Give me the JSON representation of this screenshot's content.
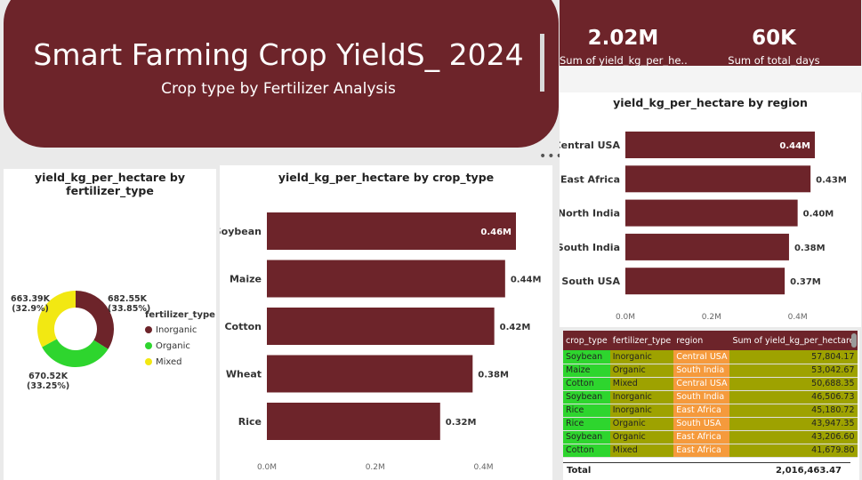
{
  "header": {
    "title": "Smart Farming Crop YieldS_ 2024",
    "subtitle": "Crop type by Fertilizer Analysis"
  },
  "kpis": [
    {
      "value": "2.02M",
      "label": "Sum of yield_kg_per_he..."
    },
    {
      "value": "60K",
      "label": "Sum of total_days"
    }
  ],
  "more_options": "•••",
  "colors": {
    "brand": "#6d242a",
    "inorganic": "#6d242a",
    "organic": "#2ed52e",
    "mixed": "#f2e812"
  },
  "donut": {
    "title_line1": "yield_kg_per_hectare by",
    "title_line2": "fertilizer_type",
    "legend_title": "fertilizer_type",
    "segments": [
      {
        "name": "Inorganic",
        "value": 682.55,
        "value_label": "682.55K",
        "pct_label": "(33.85%)"
      },
      {
        "name": "Organic",
        "value": 670.52,
        "value_label": "670.52K",
        "pct_label": "(33.25%)"
      },
      {
        "name": "Mixed",
        "value": 663.39,
        "value_label": "663.39K",
        "pct_label": "(32.9%)"
      }
    ]
  },
  "chart_data": [
    {
      "type": "bar",
      "title": "yield_kg_per_hectare by crop_type",
      "categories": [
        "Soybean",
        "Maize",
        "Cotton",
        "Wheat",
        "Rice"
      ],
      "values": [
        0.46,
        0.44,
        0.42,
        0.38,
        0.32
      ],
      "value_labels": [
        "0.46M",
        "0.44M",
        "0.42M",
        "0.38M",
        "0.32M"
      ],
      "xlim": [
        0,
        0.46
      ],
      "ticks": [
        "0.0M",
        "0.2M",
        "0.4M"
      ],
      "tick_values": [
        0,
        0.2,
        0.4
      ]
    },
    {
      "type": "bar",
      "title": "yield_kg_per_hectare by region",
      "categories": [
        "Central USA",
        "East Africa",
        "North India",
        "South India",
        "South USA"
      ],
      "values": [
        0.44,
        0.43,
        0.4,
        0.38,
        0.37
      ],
      "value_labels": [
        "0.44M",
        "0.43M",
        "0.40M",
        "0.38M",
        "0.37M"
      ],
      "xlim": [
        0,
        0.44
      ],
      "ticks": [
        "0.0M",
        "0.2M",
        "0.4M"
      ],
      "tick_values": [
        0,
        0.2,
        0.4
      ]
    }
  ],
  "table": {
    "columns": [
      "crop_type",
      "fertilizer_type",
      "region",
      "Sum of yield_kg_per_hectare"
    ],
    "rows": [
      [
        "Soybean",
        "Inorganic",
        "Central USA",
        "57,804.17"
      ],
      [
        "Maize",
        "Organic",
        "South India",
        "53,042.67"
      ],
      [
        "Cotton",
        "Mixed",
        "Central USA",
        "50,688.35"
      ],
      [
        "Soybean",
        "Inorganic",
        "South India",
        "46,506.73"
      ],
      [
        "Rice",
        "Inorganic",
        "East Africa",
        "45,180.72"
      ],
      [
        "Rice",
        "Organic",
        "South USA",
        "43,947.35"
      ],
      [
        "Soybean",
        "Organic",
        "East Africa",
        "43,206.60"
      ],
      [
        "Cotton",
        "Mixed",
        "East Africa",
        "41,679.80"
      ]
    ],
    "total_label": "Total",
    "total_value": "2,016,463.47"
  }
}
